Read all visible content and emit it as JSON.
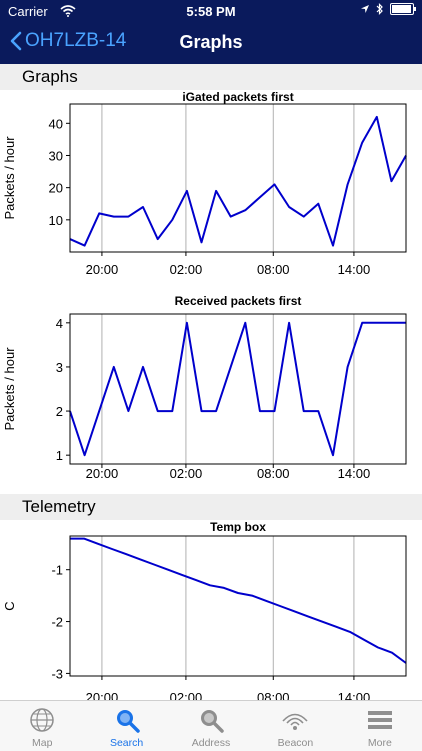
{
  "status": {
    "carrier": "Carrier",
    "time": "5:58 PM"
  },
  "nav": {
    "back_label": "OH7LZB-14",
    "title": "Graphs"
  },
  "sections": {
    "graphs": "Graphs",
    "telemetry": "Telemetry"
  },
  "tabs": [
    {
      "label": "Map",
      "icon": "globe-icon"
    },
    {
      "label": "Search",
      "icon": "search-icon"
    },
    {
      "label": "Address",
      "icon": "magnifier-icon"
    },
    {
      "label": "Beacon",
      "icon": "beacon-icon"
    },
    {
      "label": "More",
      "icon": "more-icon"
    }
  ],
  "colors": {
    "nav_bar": "#0a1a5c",
    "accent": "#1a73e8",
    "line": "#0000cc"
  },
  "chart_data": [
    {
      "type": "line",
      "title": "iGated packets first",
      "ylabel": "Packets / hour",
      "x_ticks": [
        "20:00",
        "02:00",
        "08:00",
        "14:00"
      ],
      "ylim": [
        0,
        46
      ],
      "y_ticks": [
        10,
        20,
        30,
        40
      ],
      "grid": true,
      "values": [
        4,
        2,
        12,
        11,
        11,
        14,
        4,
        10,
        19,
        3,
        19,
        11,
        13,
        17,
        21,
        14,
        11,
        15,
        2,
        21,
        34,
        42,
        22,
        30
      ]
    },
    {
      "type": "line",
      "title": "Received packets first",
      "ylabel": "Packets / hour",
      "x_ticks": [
        "20:00",
        "02:00",
        "08:00",
        "14:00"
      ],
      "ylim": [
        0.8,
        4.2
      ],
      "y_ticks": [
        1,
        2,
        3,
        4
      ],
      "grid": true,
      "values": [
        2,
        1,
        2,
        3,
        2,
        3,
        2,
        2,
        4,
        2,
        2,
        3,
        4,
        2,
        2,
        4,
        2,
        2,
        1,
        3,
        4,
        4,
        4,
        4
      ]
    },
    {
      "type": "line",
      "title": "Temp box",
      "ylabel": "C",
      "x_ticks": [
        "20:00",
        "02:00",
        "08:00",
        "14:00"
      ],
      "ylim": [
        -3.05,
        -0.35
      ],
      "y_ticks": [
        -1,
        -2,
        -3
      ],
      "grid": true,
      "values": [
        -0.4,
        -0.4,
        -0.5,
        -0.6,
        -0.7,
        -0.8,
        -0.9,
        -1.0,
        -1.1,
        -1.2,
        -1.3,
        -1.35,
        -1.45,
        -1.5,
        -1.6,
        -1.7,
        -1.8,
        -1.9,
        -2.0,
        -2.1,
        -2.2,
        -2.35,
        -2.5,
        -2.6,
        -2.8
      ]
    }
  ]
}
